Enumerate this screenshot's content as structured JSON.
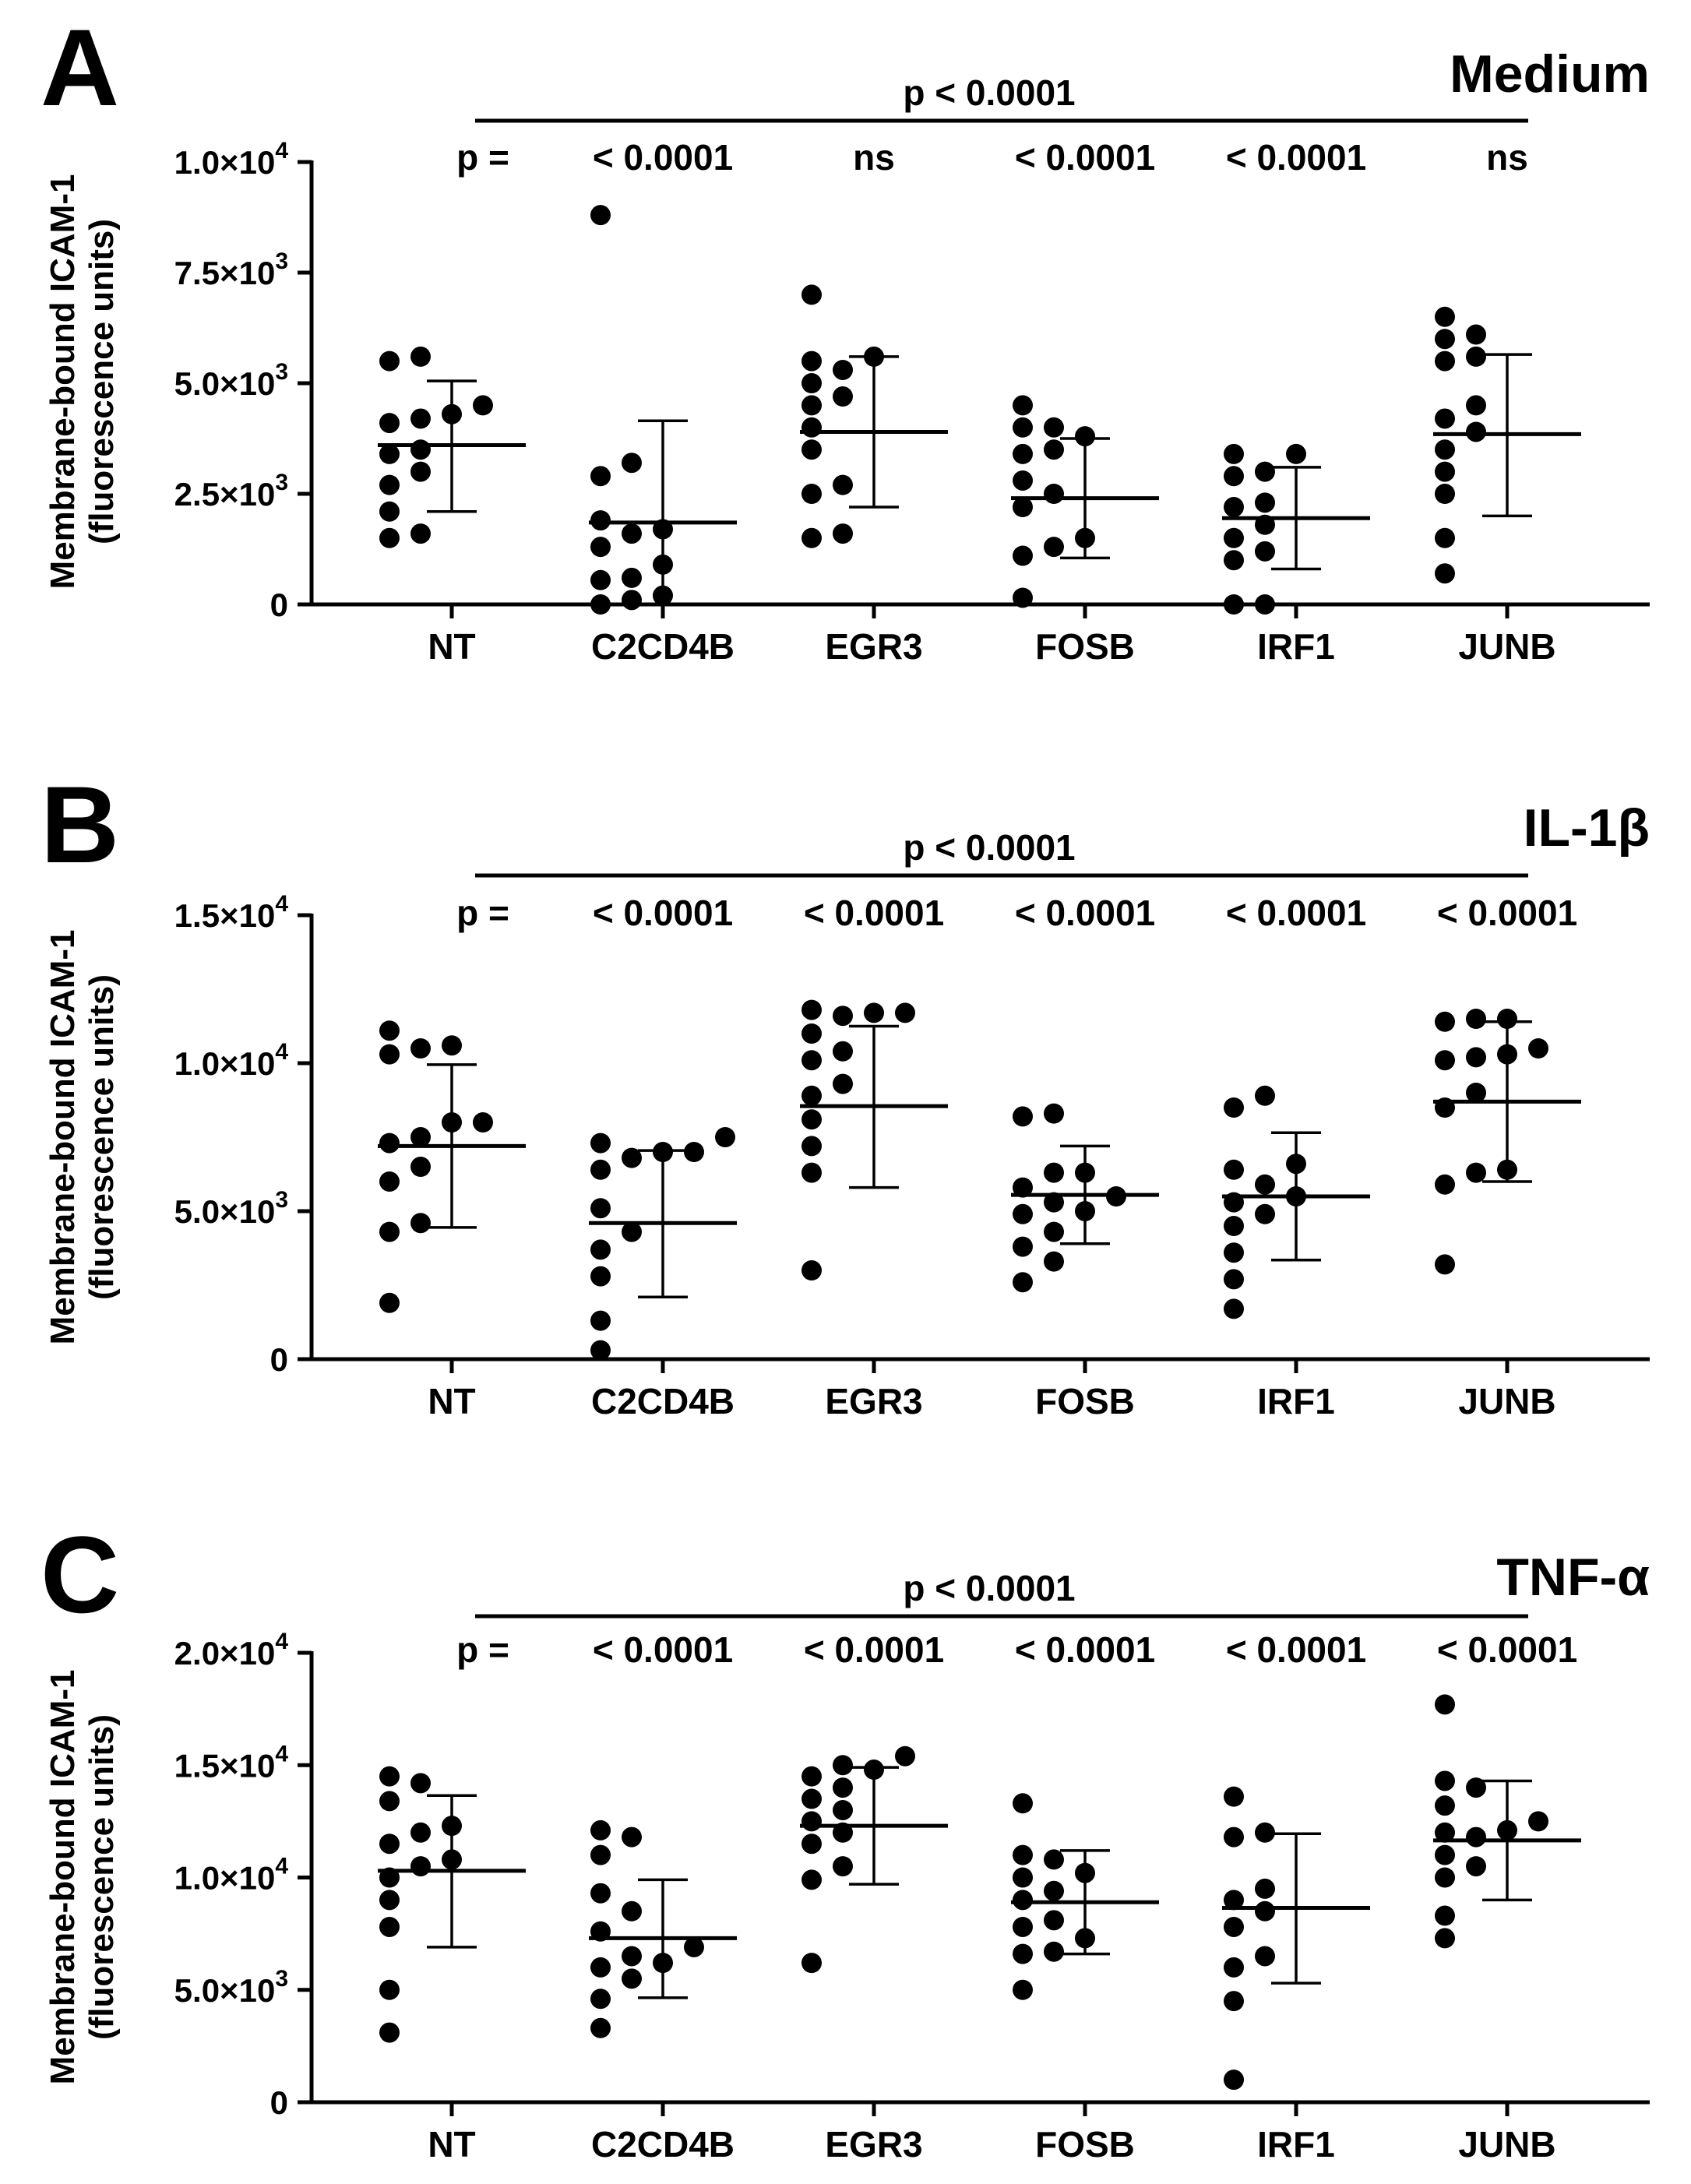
{
  "chart_data": [
    {
      "type": "scatter",
      "panel_label": "A",
      "title": "Medium",
      "ylabel_lines": [
        "Membrane-bound ICAM-1",
        "(fluorescence units)"
      ],
      "ylim": [
        0,
        10000
      ],
      "yticks": [
        {
          "value": 0,
          "mant": "0",
          "exp": ""
        },
        {
          "value": 2500,
          "mant": "2.5×10",
          "exp": "3"
        },
        {
          "value": 5000,
          "mant": "5.0×10",
          "exp": "3"
        },
        {
          "value": 7500,
          "mant": "7.5×10",
          "exp": "3"
        },
        {
          "value": 10000,
          "mant": "1.0×10",
          "exp": "4"
        }
      ],
      "overall_p": "p < 0.0001",
      "p_prefix": "p =",
      "groups": [
        {
          "name": "NT",
          "mean": 3600,
          "sd_low": 2100,
          "sd_high": 5050,
          "p": "",
          "points": [
            1500,
            1600,
            2100,
            2700,
            3000,
            3400,
            3500,
            4100,
            4200,
            4300,
            4500,
            5500,
            5600
          ]
        },
        {
          "name": "C2CD4B",
          "mean": 1850,
          "sd_low": 0,
          "sd_high": 4150,
          "p": "< 0.0001",
          "points": [
            0,
            100,
            200,
            550,
            600,
            900,
            1300,
            1600,
            1700,
            1900,
            2900,
            3200,
            8800
          ]
        },
        {
          "name": "EGR3",
          "mean": 3900,
          "sd_low": 2200,
          "sd_high": 5600,
          "p": "ns",
          "points": [
            1500,
            1600,
            2500,
            2700,
            3500,
            4000,
            4500,
            4700,
            5000,
            5300,
            5500,
            5600,
            7000
          ]
        },
        {
          "name": "FOSB",
          "mean": 2400,
          "sd_low": 1050,
          "sd_high": 3750,
          "p": "< 0.0001",
          "points": [
            150,
            1100,
            1300,
            1500,
            2200,
            2500,
            2800,
            3400,
            3500,
            3800,
            4000,
            4000,
            4500
          ]
        },
        {
          "name": "IRF1",
          "mean": 1950,
          "sd_low": 800,
          "sd_high": 3100,
          "p": "< 0.0001",
          "points": [
            0,
            0,
            1000,
            1200,
            1500,
            1800,
            2200,
            2300,
            2900,
            3000,
            3400,
            3400
          ]
        },
        {
          "name": "JUNB",
          "mean": 3850,
          "sd_low": 2000,
          "sd_high": 5650,
          "p": "ns",
          "points": [
            700,
            1500,
            2500,
            3000,
            3500,
            3900,
            4200,
            4500,
            5500,
            5600,
            6000,
            6100,
            6500
          ]
        }
      ]
    },
    {
      "type": "scatter",
      "panel_label": "B",
      "title": "IL-1β",
      "ylabel_lines": [
        "Membrane-bound ICAM-1",
        "(fluorescence units)"
      ],
      "ylim": [
        0,
        15000
      ],
      "yticks": [
        {
          "value": 0,
          "mant": "0",
          "exp": ""
        },
        {
          "value": 5000,
          "mant": "5.0×10",
          "exp": "3"
        },
        {
          "value": 10000,
          "mant": "1.0×10",
          "exp": "4"
        },
        {
          "value": 15000,
          "mant": "1.5×10",
          "exp": "4"
        }
      ],
      "overall_p": "p < 0.0001",
      "p_prefix": "p =",
      "groups": [
        {
          "name": "NT",
          "mean": 7200,
          "sd_low": 4450,
          "sd_high": 9950,
          "p": "",
          "points": [
            1900,
            4300,
            4600,
            6000,
            6500,
            7300,
            7500,
            8000,
            8000,
            10300,
            10500,
            10600,
            11100
          ]
        },
        {
          "name": "C2CD4B",
          "mean": 4600,
          "sd_low": 2100,
          "sd_high": 7050,
          "p": "< 0.0001",
          "points": [
            300,
            1300,
            2800,
            3700,
            4300,
            5100,
            6400,
            6800,
            7000,
            7000,
            7300,
            7500
          ]
        },
        {
          "name": "EGR3",
          "mean": 8550,
          "sd_low": 5800,
          "sd_high": 11250,
          "p": "< 0.0001",
          "points": [
            3000,
            6300,
            7200,
            8100,
            8900,
            9300,
            10100,
            10400,
            11000,
            11600,
            11700,
            11700,
            11800
          ]
        },
        {
          "name": "FOSB",
          "mean": 5550,
          "sd_low": 3900,
          "sd_high": 7200,
          "p": "< 0.0001",
          "points": [
            2600,
            3300,
            3800,
            4300,
            4900,
            5000,
            5300,
            5500,
            5800,
            6300,
            6300,
            8200,
            8300
          ]
        },
        {
          "name": "IRF1",
          "mean": 5500,
          "sd_low": 3350,
          "sd_high": 7650,
          "p": "< 0.0001",
          "points": [
            1700,
            2700,
            3600,
            4500,
            4900,
            5300,
            5500,
            5900,
            6400,
            6600,
            8500,
            8900
          ]
        },
        {
          "name": "JUNB",
          "mean": 8700,
          "sd_low": 6000,
          "sd_high": 11400,
          "p": "< 0.0001",
          "points": [
            3200,
            5900,
            6300,
            6400,
            8500,
            9000,
            10100,
            10200,
            10300,
            10500,
            11400,
            11500,
            11500
          ]
        }
      ]
    },
    {
      "type": "scatter",
      "panel_label": "C",
      "title": "TNF-α",
      "ylabel_lines": [
        "Membrane-bound ICAM-1",
        "(fluorescence units)"
      ],
      "ylim": [
        0,
        20000
      ],
      "yticks": [
        {
          "value": 0,
          "mant": "0",
          "exp": ""
        },
        {
          "value": 5000,
          "mant": "5.0×10",
          "exp": "3"
        },
        {
          "value": 10000,
          "mant": "1.0×10",
          "exp": "4"
        },
        {
          "value": 15000,
          "mant": "1.5×10",
          "exp": "4"
        },
        {
          "value": 20000,
          "mant": "2.0×10",
          "exp": "4"
        }
      ],
      "overall_p": "p < 0.0001",
      "p_prefix": "p =",
      "groups": [
        {
          "name": "NT",
          "mean": 10300,
          "sd_low": 6900,
          "sd_high": 13650,
          "p": "",
          "points": [
            3100,
            5000,
            7800,
            9000,
            10000,
            10500,
            10800,
            11500,
            12000,
            12300,
            13400,
            14200,
            14500
          ]
        },
        {
          "name": "C2CD4B",
          "mean": 7300,
          "sd_low": 4650,
          "sd_high": 9900,
          "p": "< 0.0001",
          "points": [
            3300,
            4600,
            5500,
            6000,
            6200,
            6500,
            6900,
            7600,
            8500,
            9300,
            11000,
            11800,
            12100
          ]
        },
        {
          "name": "EGR3",
          "mean": 12300,
          "sd_low": 9700,
          "sd_high": 14900,
          "p": "< 0.0001",
          "points": [
            6200,
            9900,
            10500,
            11500,
            12000,
            12500,
            13000,
            13500,
            14000,
            14500,
            14800,
            15000,
            15400
          ]
        },
        {
          "name": "FOSB",
          "mean": 8900,
          "sd_low": 6600,
          "sd_high": 11200,
          "p": "< 0.0001",
          "points": [
            5000,
            6600,
            6700,
            7300,
            7800,
            8100,
            9000,
            9400,
            10000,
            10200,
            10800,
            11000,
            13300
          ]
        },
        {
          "name": "IRF1",
          "mean": 8650,
          "sd_low": 5300,
          "sd_high": 11950,
          "p": "< 0.0001",
          "points": [
            1000,
            4500,
            6000,
            6500,
            7800,
            8500,
            9000,
            9500,
            11800,
            12000,
            13600
          ]
        },
        {
          "name": "JUNB",
          "mean": 11650,
          "sd_low": 9000,
          "sd_high": 14300,
          "p": "< 0.0001",
          "points": [
            7300,
            8300,
            10000,
            10500,
            11000,
            11800,
            12000,
            12100,
            12500,
            13200,
            14000,
            14300,
            17700
          ]
        }
      ]
    }
  ]
}
